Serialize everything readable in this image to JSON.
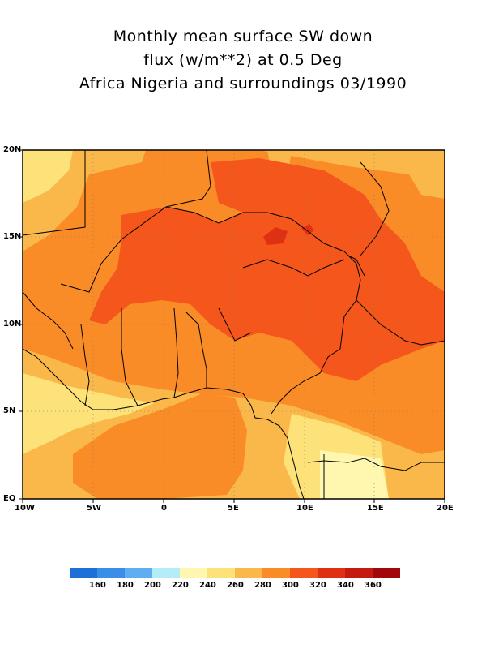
{
  "title": {
    "line1": "Monthly mean surface SW down",
    "line2": "flux (w/m**2) at 0.5 Deg",
    "line3": "Africa Nigeria and surroundings 03/1990"
  },
  "map": {
    "lon_range": [
      -10,
      20
    ],
    "lat_range": [
      0,
      20
    ],
    "x_ticks": [
      "10W",
      "5W",
      "0",
      "5E",
      "10E",
      "15E",
      "20E"
    ],
    "y_ticks": [
      "20N",
      "15N",
      "10N",
      "5N",
      "EQ"
    ],
    "grid": "dotted"
  },
  "colorbar": {
    "labels": [
      "160",
      "180",
      "200",
      "220",
      "240",
      "260",
      "280",
      "300",
      "320",
      "340",
      "360"
    ],
    "colors": [
      "#1e6fd8",
      "#3a8ee8",
      "#5faef2",
      "#b4ecf8",
      "#fff7b0",
      "#fde27a",
      "#fbb84a",
      "#fa8c28",
      "#f4561c",
      "#e03014",
      "#c41a10",
      "#a0080a"
    ]
  }
}
